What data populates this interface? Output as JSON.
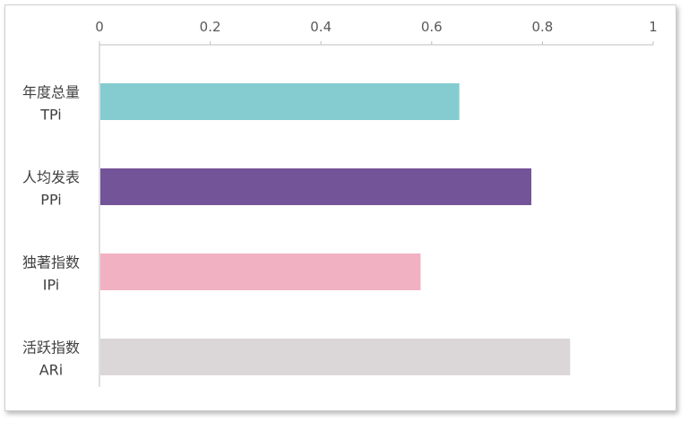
{
  "chart_data": {
    "type": "bar",
    "orientation": "horizontal",
    "title": "",
    "xlabel": "",
    "ylabel": "",
    "xlim": [
      0,
      1
    ],
    "x_ticks": [
      "0",
      "0.2",
      "0.4",
      "0.6",
      "0.8",
      "1"
    ],
    "x_axis_position": "top",
    "grid": false,
    "legend": "none",
    "categories": [
      {
        "name": "年度总量",
        "code": "TPi",
        "value": 0.65,
        "color": "#84ccd0"
      },
      {
        "name": "人均发表",
        "code": "PPi",
        "value": 0.78,
        "color": "#745498"
      },
      {
        "name": "独著指数",
        "code": "IPi",
        "value": 0.58,
        "color": "#f2b1c2"
      },
      {
        "name": "活跃指数",
        "code": "ARi",
        "value": 0.85,
        "color": "#dbd6d8"
      }
    ]
  }
}
